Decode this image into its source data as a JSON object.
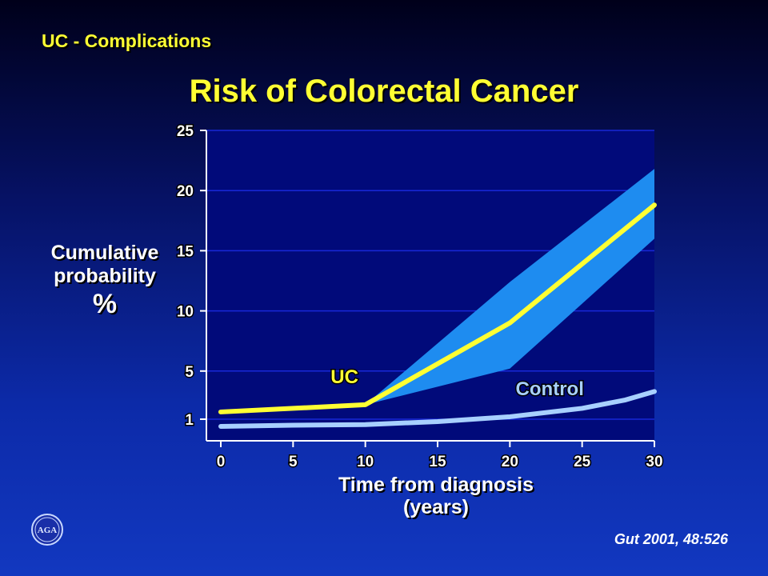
{
  "header": {
    "section_title": "UC - Complications",
    "main_title": "Risk of Colorectal Cancer"
  },
  "footer": {
    "citation": "Gut 2001, 48:526",
    "logo_text": "AGA"
  },
  "colors": {
    "plot_background": "#010a7a",
    "gridline": "#1828d8",
    "uc_line": "#ffff33",
    "uc_band": "#1e8cf0",
    "control_line": "#a8d0ff",
    "title_text": "#ffff33"
  },
  "chart_data": {
    "type": "line",
    "title": "Risk of Colorectal Cancer",
    "xlabel_line1": "Time from diagnosis",
    "xlabel_line2": "(years)",
    "ylabel_line1": "Cumulative",
    "ylabel_line2": "probability",
    "ylabel_line3": "%",
    "xlim": [
      0,
      30
    ],
    "ylim": [
      0,
      25
    ],
    "x_ticks": [
      0,
      5,
      10,
      15,
      20,
      25,
      30
    ],
    "y_ticks": [
      1,
      5,
      10,
      15,
      20,
      25
    ],
    "y_tick_labels": [
      "1",
      "5",
      "10",
      "15",
      "20",
      "25"
    ],
    "x_tick_labels": [
      "0",
      "5",
      "10",
      "15",
      "20",
      "25",
      "30"
    ],
    "grid": true,
    "series": [
      {
        "name": "UC",
        "x": [
          0,
          10,
          20,
          30
        ],
        "y": [
          1.6,
          2.2,
          9.0,
          18.8
        ],
        "band_lower": [
          1.6,
          2.2,
          5.2,
          16.0
        ],
        "band_upper": [
          1.6,
          2.2,
          12.4,
          21.8
        ]
      },
      {
        "name": "Control",
        "x": [
          0,
          5,
          10,
          15,
          20,
          25,
          28,
          30
        ],
        "y": [
          0.4,
          0.5,
          0.55,
          0.8,
          1.2,
          1.9,
          2.6,
          3.3
        ]
      }
    ]
  }
}
